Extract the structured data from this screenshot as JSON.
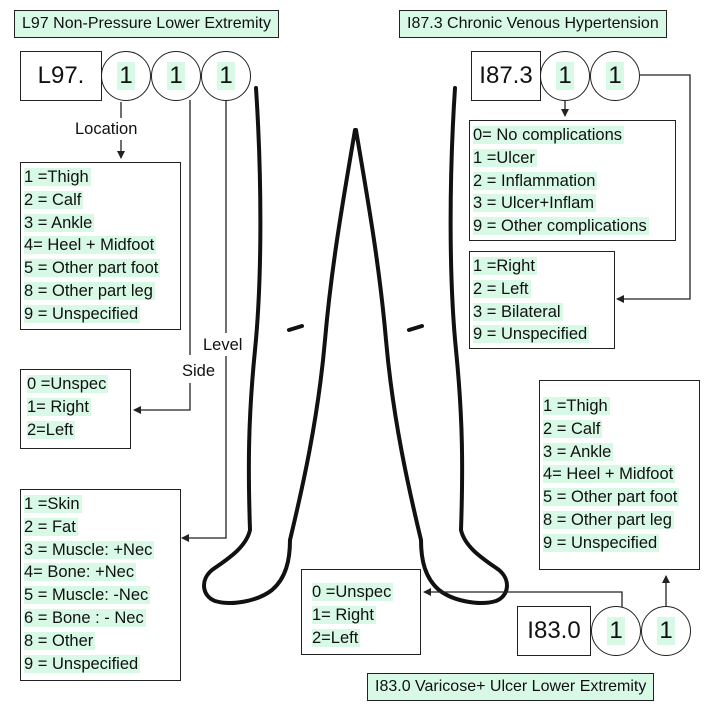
{
  "l97": {
    "title": "L97 Non-Pressure Lower Extremity",
    "code": "L97.",
    "digits": [
      "1",
      "1",
      "1"
    ],
    "location_label": "Location",
    "side_label": "Side",
    "level_label": "Level",
    "location_options": [
      "1 =Thigh",
      "2 = Calf",
      "3 = Ankle",
      "4= Heel + Midfoot",
      "5 = Other part foot",
      "8 = Other part leg",
      "9 = Unspecified"
    ],
    "side_options": [
      "0 =Unspec",
      "1= Right",
      "2=Left"
    ],
    "level_options": [
      "1 =Skin",
      "2 = Fat",
      "3 = Muscle: +Nec",
      "4= Bone: +Nec",
      "5 = Muscle: -Nec",
      "6 = Bone : - Nec",
      "8 = Other",
      "9 = Unspecified"
    ]
  },
  "i87": {
    "title": "I87.3 Chronic Venous Hypertension",
    "code": "I87.3",
    "digits": [
      "1",
      "1"
    ],
    "complication_options": [
      "0= No complications",
      "1 =Ulcer",
      "2 = Inflammation",
      "3 = Ulcer+Inflam",
      "9 = Other complications"
    ],
    "side_options": [
      "1 =Right",
      "2 = Left",
      "3 = Bilateral",
      "9 = Unspecified"
    ]
  },
  "i83": {
    "title": "I83.0 Varicose+ Ulcer Lower Extremity",
    "code": "I83.0",
    "digits": [
      "1",
      "1"
    ],
    "location_options": [
      "1 =Thigh",
      "2 = Calf",
      "3 = Ankle",
      "4= Heel + Midfoot",
      "5 = Other part foot",
      "8 = Other part leg",
      "9 = Unspecified"
    ],
    "side_options": [
      "0 =Unspec",
      "1= Right",
      "2=Left"
    ]
  },
  "colors": {
    "highlight": "#d9f9e7",
    "line": "#222222"
  }
}
